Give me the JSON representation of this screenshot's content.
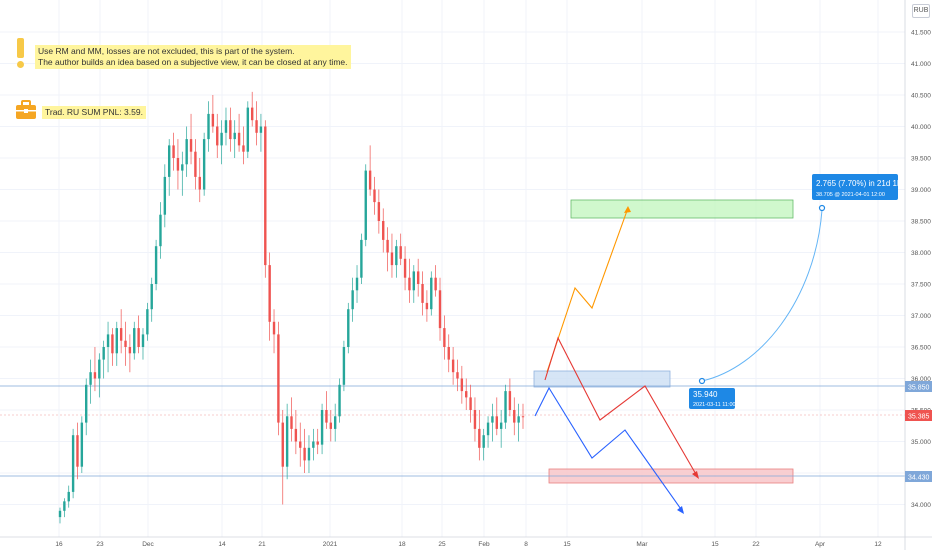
{
  "currency": "RUB",
  "notes": {
    "line1": "Use RM and MM, losses are not excluded, this is part of the system.",
    "line2": "The author builds an idea based on a subjective view, it can be closed at any time.",
    "pnl": "Trad. RU SUM PNL: 3.59."
  },
  "colors": {
    "up": "#26a69a",
    "down": "#ef5350",
    "grid": "#f0f3fa",
    "hline": "#7fa7d9",
    "projection": "#2196f3",
    "orange": "#ff9800",
    "red_path": "#e53935",
    "blue_path": "#2962ff"
  },
  "price_labels": {
    "entry": "35.850",
    "current": "35.385",
    "support": "34.430"
  },
  "projection": {
    "start_value": "35.940",
    "start_time": "2021-03-11 11:00",
    "target_change": "2.765 (7.70%) in 21d 1h",
    "target_detail": "38.705 @ 2021-04-01  12:00"
  },
  "chart_data": {
    "type": "candlestick",
    "title": "",
    "y_axis": {
      "ticks": [
        "34.000",
        "34.500",
        "35.000",
        "35.500",
        "36.000",
        "36.500",
        "37.000",
        "37.500",
        "38.000",
        "38.500",
        "39.000",
        "39.500",
        "40.000",
        "40.500",
        "41.000",
        "41.500"
      ],
      "range": [
        33.75,
        41.75
      ]
    },
    "x_axis": {
      "ticks": [
        "16",
        "23",
        "Dec",
        "14",
        "21",
        "2021",
        "18",
        "25",
        "Feb",
        "8",
        "15",
        "Mar",
        "15",
        "22",
        "Apr",
        "12"
      ]
    },
    "candles_ohlc": [
      [
        33.8,
        33.95,
        33.7,
        33.9
      ],
      [
        33.9,
        34.1,
        33.8,
        34.05
      ],
      [
        34.05,
        34.3,
        33.95,
        34.2
      ],
      [
        34.2,
        35.2,
        34.1,
        35.1
      ],
      [
        35.1,
        35.3,
        34.4,
        34.6
      ],
      [
        34.6,
        35.4,
        34.5,
        35.3
      ],
      [
        35.3,
        36.0,
        35.1,
        35.9
      ],
      [
        35.9,
        36.3,
        35.6,
        36.1
      ],
      [
        36.1,
        36.5,
        35.8,
        36.0
      ],
      [
        36.0,
        36.4,
        35.7,
        36.3
      ],
      [
        36.3,
        36.6,
        36.0,
        36.5
      ],
      [
        36.5,
        36.9,
        36.1,
        36.7
      ],
      [
        36.7,
        36.8,
        36.2,
        36.4
      ],
      [
        36.4,
        36.9,
        36.2,
        36.8
      ],
      [
        36.8,
        37.1,
        36.4,
        36.6
      ],
      [
        36.6,
        36.9,
        36.2,
        36.5
      ],
      [
        36.5,
        36.7,
        36.1,
        36.4
      ],
      [
        36.4,
        36.9,
        36.3,
        36.8
      ],
      [
        36.8,
        37.0,
        36.4,
        36.5
      ],
      [
        36.5,
        36.8,
        36.3,
        36.7
      ],
      [
        36.7,
        37.2,
        36.6,
        37.1
      ],
      [
        37.1,
        37.6,
        36.9,
        37.5
      ],
      [
        37.5,
        38.2,
        37.4,
        38.1
      ],
      [
        38.1,
        38.8,
        37.9,
        38.6
      ],
      [
        38.6,
        39.4,
        38.4,
        39.2
      ],
      [
        39.2,
        39.8,
        38.9,
        39.7
      ],
      [
        39.7,
        39.9,
        39.3,
        39.5
      ],
      [
        39.5,
        39.8,
        39.0,
        39.3
      ],
      [
        39.3,
        39.6,
        38.9,
        39.4
      ],
      [
        39.4,
        40.0,
        39.2,
        39.8
      ],
      [
        39.8,
        40.2,
        39.4,
        39.6
      ],
      [
        39.6,
        39.8,
        39.0,
        39.2
      ],
      [
        39.2,
        39.5,
        38.8,
        39.0
      ],
      [
        39.0,
        39.9,
        38.9,
        39.8
      ],
      [
        39.8,
        40.4,
        39.6,
        40.2
      ],
      [
        40.2,
        40.5,
        39.9,
        40.0
      ],
      [
        40.0,
        40.2,
        39.5,
        39.7
      ],
      [
        39.7,
        40.1,
        39.4,
        39.9
      ],
      [
        39.9,
        40.3,
        39.7,
        40.1
      ],
      [
        40.1,
        40.3,
        39.6,
        39.8
      ],
      [
        39.8,
        40.1,
        39.5,
        39.9
      ],
      [
        39.9,
        40.2,
        39.6,
        39.7
      ],
      [
        39.7,
        40.0,
        39.4,
        39.6
      ],
      [
        39.6,
        40.4,
        39.5,
        40.3
      ],
      [
        40.3,
        40.55,
        40.0,
        40.1
      ],
      [
        40.1,
        40.4,
        39.7,
        39.9
      ],
      [
        39.9,
        40.2,
        39.6,
        40.0
      ],
      [
        40.0,
        40.1,
        37.6,
        37.8
      ],
      [
        37.8,
        38.0,
        36.6,
        36.9
      ],
      [
        36.9,
        37.1,
        36.4,
        36.7
      ],
      [
        36.7,
        36.9,
        35.1,
        35.3
      ],
      [
        35.3,
        35.5,
        34.0,
        34.6
      ],
      [
        34.6,
        35.6,
        34.4,
        35.4
      ],
      [
        35.4,
        35.7,
        35.0,
        35.2
      ],
      [
        35.2,
        35.5,
        34.8,
        35.0
      ],
      [
        35.0,
        35.3,
        34.6,
        34.9
      ],
      [
        34.9,
        35.2,
        34.5,
        34.7
      ],
      [
        34.7,
        35.1,
        34.5,
        34.9
      ],
      [
        34.9,
        35.2,
        34.7,
        35.0
      ],
      [
        35.0,
        35.2,
        34.8,
        34.95
      ],
      [
        34.95,
        35.6,
        34.8,
        35.5
      ],
      [
        35.5,
        35.8,
        35.2,
        35.3
      ],
      [
        35.3,
        35.5,
        35.0,
        35.2
      ],
      [
        35.2,
        35.6,
        35.0,
        35.4
      ],
      [
        35.4,
        36.0,
        35.3,
        35.9
      ],
      [
        35.9,
        36.6,
        35.8,
        36.5
      ],
      [
        36.5,
        37.2,
        36.4,
        37.1
      ],
      [
        37.1,
        37.6,
        36.9,
        37.4
      ],
      [
        37.4,
        37.8,
        37.2,
        37.6
      ],
      [
        37.6,
        38.3,
        37.5,
        38.2
      ],
      [
        38.2,
        39.4,
        38.1,
        39.3
      ],
      [
        39.3,
        39.7,
        38.9,
        39.0
      ],
      [
        39.0,
        39.2,
        38.6,
        38.8
      ],
      [
        38.8,
        39.0,
        38.3,
        38.5
      ],
      [
        38.5,
        38.7,
        38.0,
        38.2
      ],
      [
        38.2,
        38.4,
        37.7,
        38.0
      ],
      [
        38.0,
        38.3,
        37.6,
        37.8
      ],
      [
        37.8,
        38.2,
        37.6,
        38.1
      ],
      [
        38.1,
        38.3,
        37.8,
        37.9
      ],
      [
        37.9,
        38.1,
        37.4,
        37.6
      ],
      [
        37.6,
        37.9,
        37.2,
        37.4
      ],
      [
        37.4,
        37.8,
        37.2,
        37.7
      ],
      [
        37.7,
        37.9,
        37.3,
        37.5
      ],
      [
        37.5,
        37.7,
        37.0,
        37.2
      ],
      [
        37.2,
        37.4,
        36.9,
        37.1
      ],
      [
        37.1,
        37.7,
        37.0,
        37.6
      ],
      [
        37.6,
        37.8,
        37.3,
        37.4
      ],
      [
        37.4,
        37.6,
        36.6,
        36.8
      ],
      [
        36.8,
        37.0,
        36.3,
        36.5
      ],
      [
        36.5,
        36.7,
        36.1,
        36.3
      ],
      [
        36.3,
        36.5,
        35.9,
        36.1
      ],
      [
        36.1,
        36.3,
        35.8,
        36.0
      ],
      [
        36.0,
        36.2,
        35.6,
        35.8
      ],
      [
        35.8,
        36.0,
        35.5,
        35.7
      ],
      [
        35.7,
        35.9,
        35.3,
        35.5
      ],
      [
        35.5,
        35.7,
        35.0,
        35.2
      ],
      [
        35.2,
        35.5,
        34.7,
        34.9
      ],
      [
        34.9,
        35.2,
        34.7,
        35.1
      ],
      [
        35.1,
        35.4,
        34.9,
        35.3
      ],
      [
        35.3,
        35.6,
        35.0,
        35.4
      ],
      [
        35.4,
        35.7,
        35.1,
        35.2
      ],
      [
        35.2,
        35.5,
        34.9,
        35.3
      ],
      [
        35.3,
        35.9,
        35.2,
        35.8
      ],
      [
        35.8,
        36.0,
        35.4,
        35.5
      ],
      [
        35.5,
        35.7,
        35.1,
        35.3
      ],
      [
        35.3,
        35.6,
        35.0,
        35.4
      ],
      [
        35.4,
        35.6,
        35.2,
        35.385
      ]
    ]
  }
}
